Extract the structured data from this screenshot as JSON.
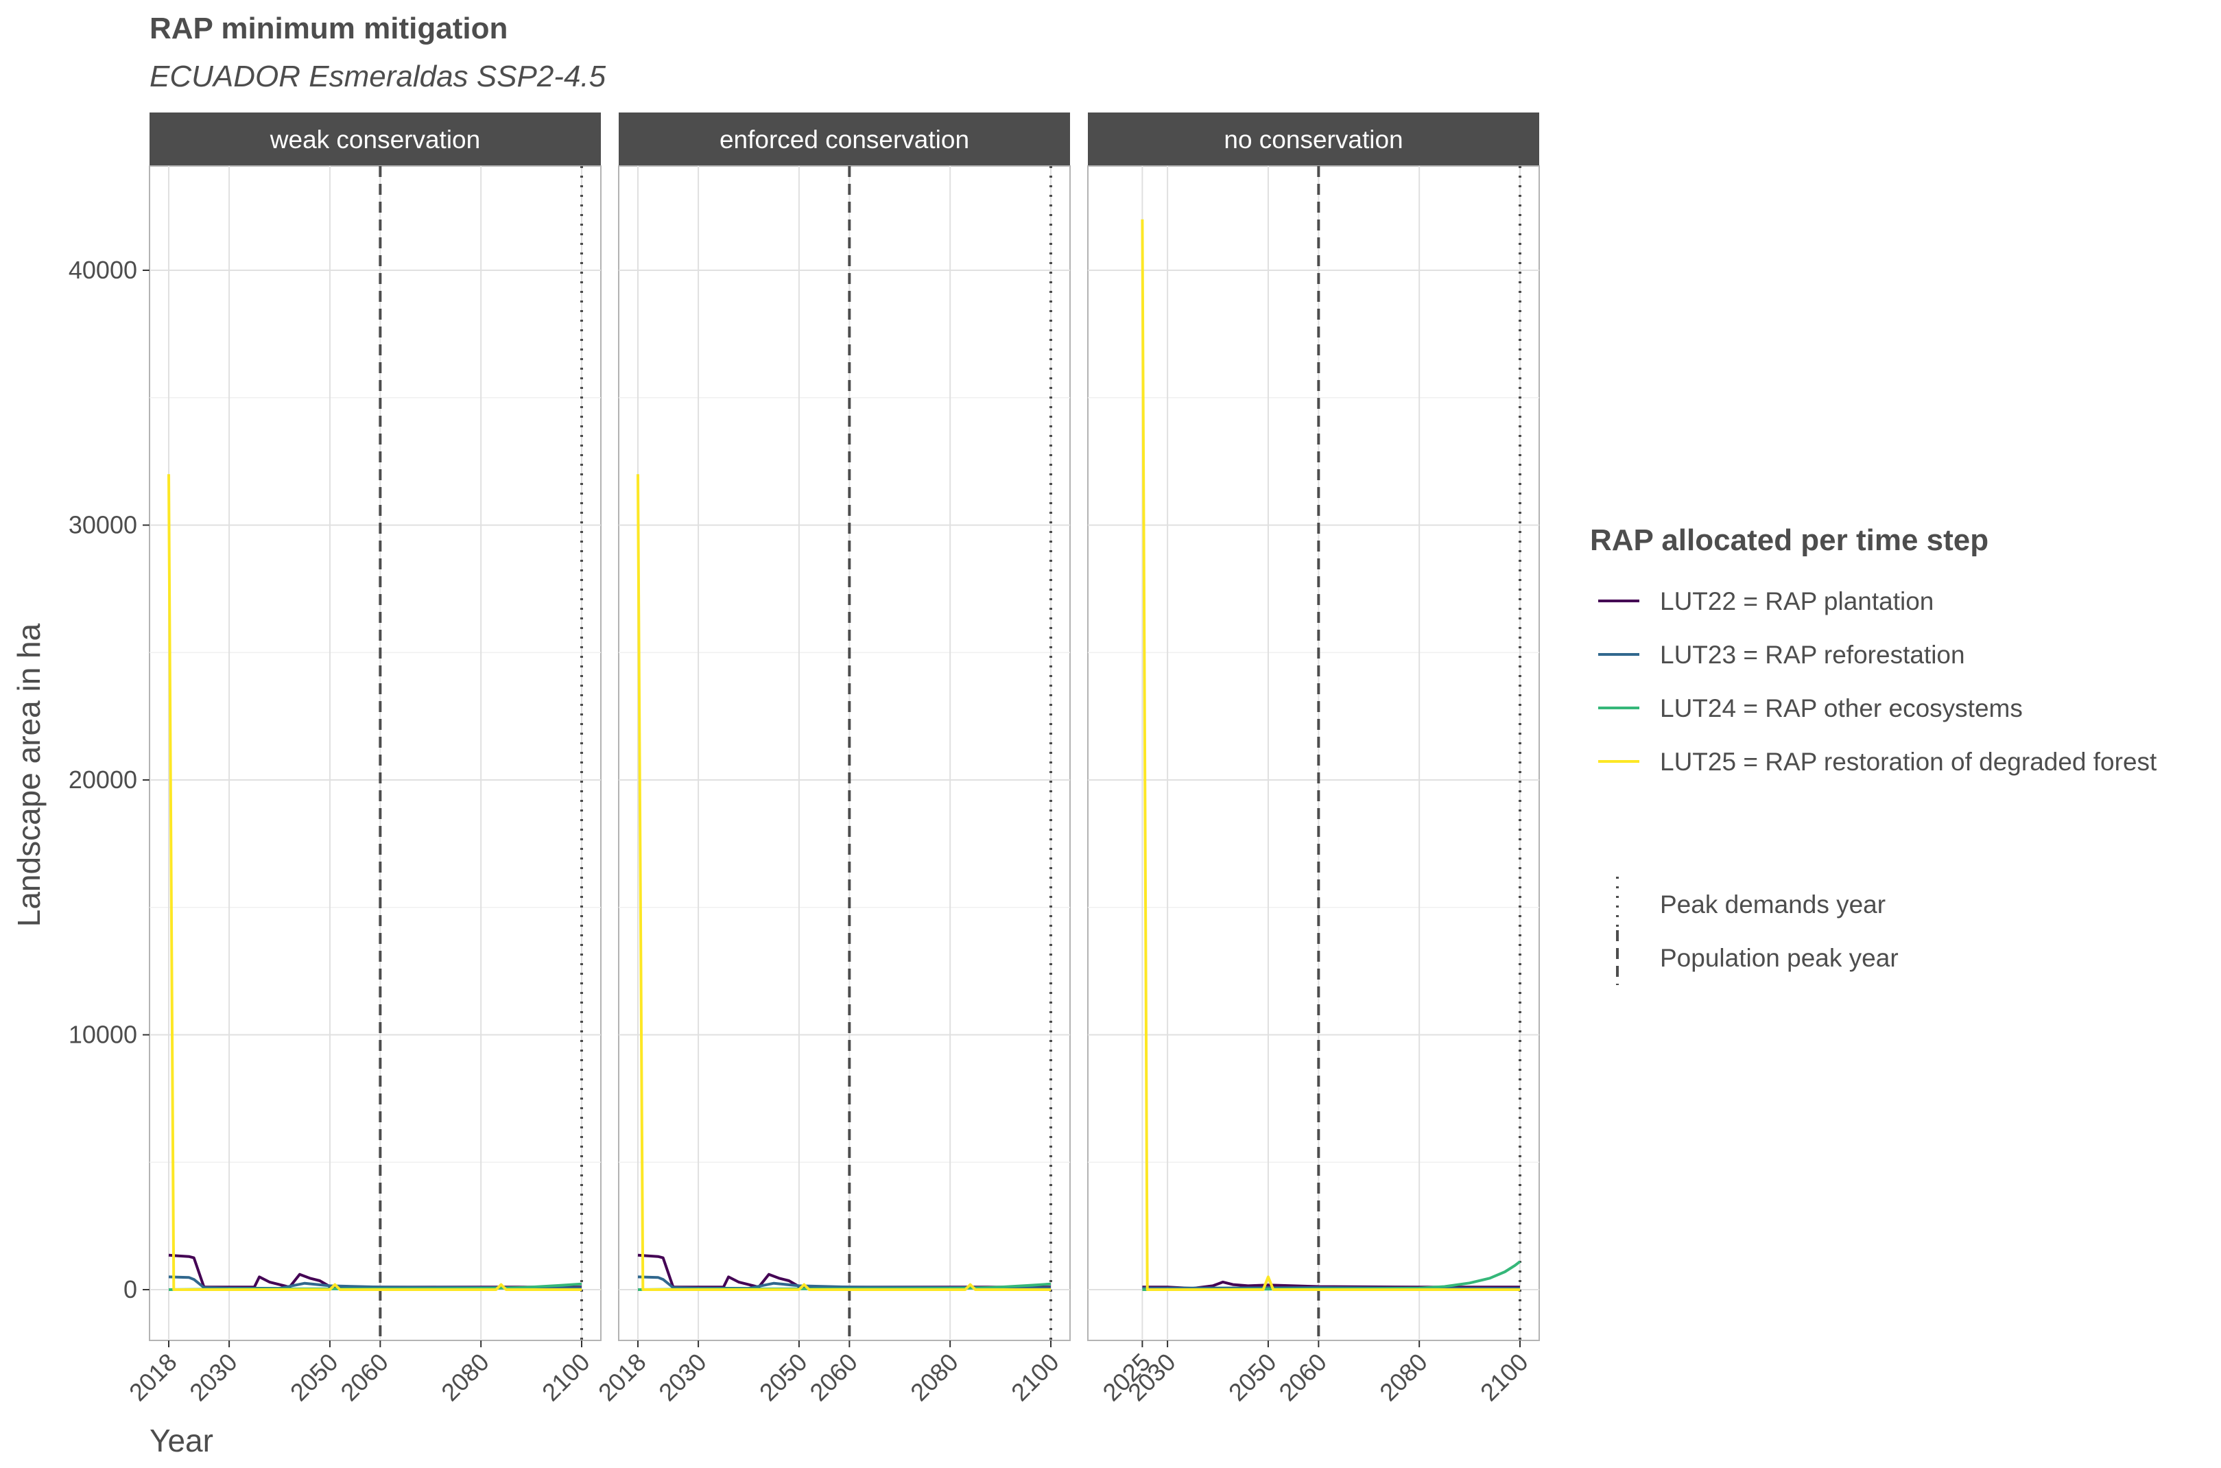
{
  "chart_data": {
    "type": "line",
    "title": "RAP minimum mitigation",
    "subtitle": "ECUADOR Esmeraldas SSP2-4.5",
    "xlabel": "Year",
    "ylabel": "Landscape area in ha",
    "xlim": [
      2018,
      2100
    ],
    "ylim": [
      0,
      42000
    ],
    "y_ticks": [
      0,
      10000,
      20000,
      30000,
      40000
    ],
    "grid": true,
    "legend_position": "right",
    "legend_title": "RAP allocated per time step",
    "series_legend": [
      {
        "name": "LUT22 = RAP plantation",
        "color": "#440154"
      },
      {
        "name": "LUT23 = RAP reforestation",
        "color": "#31688e"
      },
      {
        "name": "LUT24 = RAP other ecosystems",
        "color": "#35b779"
      },
      {
        "name": "LUT25 = RAP restoration of degraded forest",
        "color": "#fde725"
      }
    ],
    "line_legend": [
      {
        "name": "Peak demands year",
        "style": "dotted"
      },
      {
        "name": "Population peak year",
        "style": "dashed"
      }
    ],
    "panels": [
      {
        "label": "weak conservation",
        "x_ticks": [
          "2018",
          "2030",
          "2050",
          "2060",
          "2080",
          "2100"
        ],
        "population_peak_year": 2060,
        "peak_demands_year": 2100,
        "series": [
          {
            "name": "LUT22 = RAP plantation",
            "x": [
              2018,
              2022,
              2023,
              2025,
              2035,
              2036,
              2038,
              2041,
              2042,
              2044,
              2046,
              2048,
              2050,
              2060,
              2080,
              2100
            ],
            "y": [
              1350,
              1300,
              1250,
              100,
              100,
              500,
              300,
              150,
              100,
              600,
              450,
              350,
              120,
              100,
              100,
              100
            ]
          },
          {
            "name": "LUT23 = RAP reforestation",
            "x": [
              2018,
              2022,
              2023,
              2025,
              2030,
              2040,
              2045,
              2050,
              2060,
              2080,
              2100
            ],
            "y": [
              500,
              480,
              400,
              80,
              60,
              50,
              250,
              150,
              100,
              80,
              70
            ]
          },
          {
            "name": "LUT24 = RAP other ecosystems",
            "x": [
              2018,
              2030,
              2050,
              2070,
              2085,
              2090,
              2095,
              2100
            ],
            "y": [
              0,
              20,
              30,
              40,
              60,
              100,
              160,
              220
            ]
          },
          {
            "name": "LUT25 = RAP restoration of degraded forest",
            "x": [
              2018,
              2019,
              2020,
              2030,
              2050,
              2051,
              2052,
              2083,
              2084,
              2085,
              2100
            ],
            "y": [
              32000,
              0,
              0,
              0,
              0,
              200,
              0,
              0,
              200,
              0,
              0
            ]
          }
        ]
      },
      {
        "label": "enforced conservation",
        "x_ticks": [
          "2018",
          "2030",
          "2050",
          "2060",
          "2080",
          "2100"
        ],
        "population_peak_year": 2060,
        "peak_demands_year": 2100,
        "series": [
          {
            "name": "LUT22 = RAP plantation",
            "x": [
              2018,
              2022,
              2023,
              2025,
              2035,
              2036,
              2038,
              2041,
              2042,
              2044,
              2046,
              2048,
              2050,
              2060,
              2080,
              2100
            ],
            "y": [
              1350,
              1300,
              1250,
              100,
              100,
              500,
              300,
              150,
              100,
              600,
              450,
              350,
              120,
              100,
              100,
              100
            ]
          },
          {
            "name": "LUT23 = RAP reforestation",
            "x": [
              2018,
              2022,
              2023,
              2025,
              2030,
              2040,
              2045,
              2050,
              2060,
              2080,
              2100
            ],
            "y": [
              500,
              480,
              400,
              80,
              60,
              50,
              250,
              150,
              100,
              80,
              70
            ]
          },
          {
            "name": "LUT24 = RAP other ecosystems",
            "x": [
              2018,
              2030,
              2050,
              2070,
              2085,
              2090,
              2095,
              2100
            ],
            "y": [
              0,
              20,
              30,
              40,
              60,
              100,
              160,
              220
            ]
          },
          {
            "name": "LUT25 = RAP restoration of degraded forest",
            "x": [
              2018,
              2019,
              2020,
              2030,
              2050,
              2051,
              2052,
              2083,
              2084,
              2085,
              2100
            ],
            "y": [
              32000,
              0,
              0,
              0,
              0,
              200,
              0,
              0,
              200,
              0,
              0
            ]
          }
        ]
      },
      {
        "label": "no conservation",
        "x_ticks": [
          "2025",
          "2030",
          "2050",
          "2060",
          "2080",
          "2100"
        ],
        "population_peak_year": 2060,
        "peak_demands_year": 2100,
        "series": [
          {
            "name": "LUT22 = RAP plantation",
            "x": [
              2025,
              2030,
              2035,
              2039,
              2041,
              2043,
              2046,
              2050,
              2060,
              2080,
              2100
            ],
            "y": [
              100,
              100,
              50,
              150,
              300,
              200,
              150,
              180,
              120,
              100,
              100
            ]
          },
          {
            "name": "LUT23 = RAP reforestation",
            "x": [
              2025,
              2030,
              2050,
              2060,
              2080,
              2100
            ],
            "y": [
              60,
              60,
              70,
              80,
              60,
              50
            ]
          },
          {
            "name": "LUT24 = RAP other ecosystems",
            "x": [
              2025,
              2050,
              2070,
              2080,
              2085,
              2090,
              2094,
              2097,
              2099,
              2100
            ],
            "y": [
              0,
              20,
              40,
              60,
              120,
              260,
              450,
              700,
              950,
              1100
            ]
          },
          {
            "name": "LUT25 = RAP restoration of degraded forest",
            "x": [
              2025,
              2026,
              2027,
              2049,
              2050,
              2051,
              2100
            ],
            "y": [
              42000,
              0,
              0,
              0,
              500,
              0,
              0
            ]
          }
        ]
      }
    ]
  }
}
